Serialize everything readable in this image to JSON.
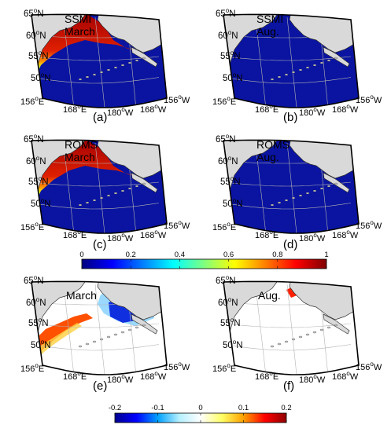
{
  "panels": [
    {
      "id": "a",
      "label": "(a)",
      "source": "SSMI",
      "month": "March",
      "kind": "conc"
    },
    {
      "id": "b",
      "label": "(b)",
      "source": "SSMI",
      "month": "Aug.",
      "kind": "conc"
    },
    {
      "id": "c",
      "label": "(c)",
      "source": "ROMS",
      "month": "March",
      "kind": "conc"
    },
    {
      "id": "d",
      "label": "(d)",
      "source": "ROMS",
      "month": "Aug.",
      "kind": "conc"
    },
    {
      "id": "e",
      "label": "(e)",
      "source": "",
      "month": "March",
      "kind": "diff"
    },
    {
      "id": "f",
      "label": "(f)",
      "source": "",
      "month": "Aug.",
      "kind": "diff"
    }
  ],
  "latitude_labels": [
    "65",
    "60",
    "55",
    "50"
  ],
  "longitude_labels": [
    "156",
    "168",
    "180",
    "168",
    "156"
  ],
  "longitude_hemis": [
    "E",
    "E",
    "W",
    "W",
    "W"
  ],
  "degree_mark": "o",
  "lat_hemi": "N",
  "colorbar_conc": {
    "min": 0,
    "max": 1,
    "ticks": [
      "0",
      "0.2",
      "0.4",
      "0.6",
      "0.8",
      "1"
    ]
  },
  "colorbar_diff": {
    "min": -0.2,
    "max": 0.2,
    "ticks": [
      "-0.2",
      "-0.1",
      "0",
      "0.1",
      "0.2"
    ]
  },
  "colors": {
    "ocean": "#0a14a0",
    "land": "#d9d9d9",
    "coast": "#333333",
    "grid": "#b4b4b4",
    "jet": [
      "#00007f",
      "#0000ff",
      "#007fff",
      "#00ffff",
      "#7fff7f",
      "#ffff00",
      "#ff7f00",
      "#ff0000",
      "#7f0000"
    ],
    "div": [
      "#00008f",
      "#0000ff",
      "#00a0ff",
      "#b4f0ff",
      "#ffffff",
      "#ffff64",
      "#ffa000",
      "#ff0000",
      "#8f0000"
    ]
  }
}
